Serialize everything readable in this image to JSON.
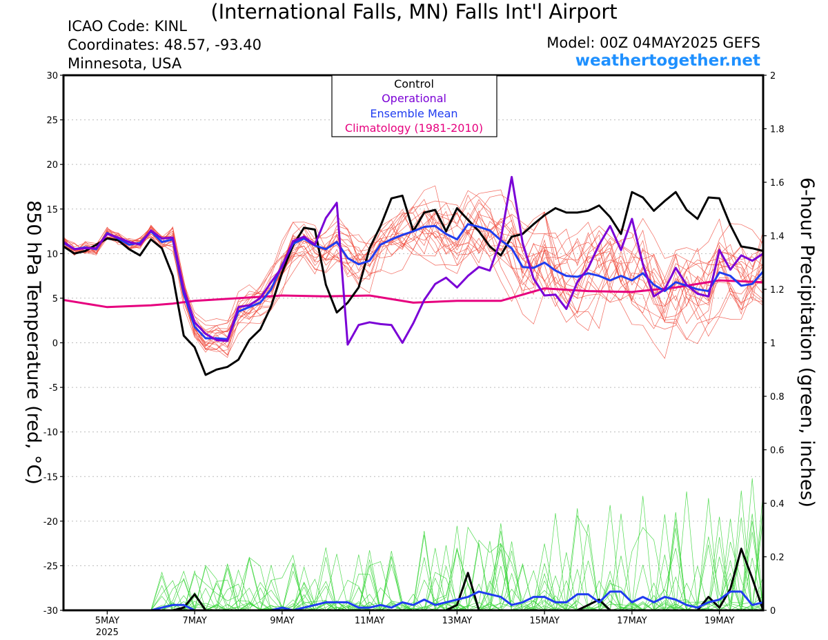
{
  "header": {
    "title": "(International Falls, MN) Falls Int'l Airport",
    "icao": "ICAO Code: KINL",
    "coordinates": "Coordinates: 48.57, -93.40",
    "location": "Minnesota, USA",
    "model": "Model: 00Z 04MAY2025 GEFS",
    "site": "weathertogether.net"
  },
  "colors": {
    "control": "#000000",
    "operational": "#7a00d6",
    "ensemble_mean": "#1f3cf0",
    "climatology": "#e6007e",
    "members_temp": "#f04a3c",
    "members_precip": "#3cd63c",
    "site": "#1e90ff"
  },
  "chart_data": {
    "type": "line",
    "x_axis": {
      "range": [
        "2025-05-04 00Z",
        "2025-05-20 00Z"
      ],
      "ticks": [
        {
          "label": "5MAY",
          "sublabel": "2025",
          "day": 1
        },
        {
          "label": "7MAY",
          "day": 3
        },
        {
          "label": "9MAY",
          "day": 5
        },
        {
          "label": "11MAY",
          "day": 7
        },
        {
          "label": "13MAY",
          "day": 9
        },
        {
          "label": "15MAY",
          "day": 11
        },
        {
          "label": "17MAY",
          "day": 13
        },
        {
          "label": "19MAY",
          "day": 15
        }
      ]
    },
    "y_left": {
      "label": "850 hPa Temperature (red, °C)",
      "range": [
        -30,
        30
      ],
      "ticks": [
        "30",
        "25",
        "20",
        "15",
        "10",
        "5",
        "0",
        "-5",
        "-10",
        "-15",
        "-20",
        "-25",
        "-30"
      ]
    },
    "y_right": {
      "label": "6-hour Precipitation (green, inches)",
      "range": [
        0,
        2
      ],
      "ticks": [
        "2",
        "1.8",
        "1.6",
        "1.4",
        "1.2",
        "1",
        "0.8",
        "0.6",
        "0.4",
        "0.2",
        "0"
      ]
    },
    "legend": {
      "placement": "top-center",
      "entries": [
        {
          "label": "Control",
          "color": "#000000"
        },
        {
          "label": "Operational",
          "color": "#7a00d6"
        },
        {
          "label": "Ensemble Mean",
          "color": "#1f3cf0"
        },
        {
          "label": "Climatology (1981-2010)",
          "color": "#e6007e"
        }
      ]
    },
    "grid": "horizontal dotted",
    "series": [
      {
        "name": "Control",
        "axis": "left",
        "x": [
          0,
          0.25,
          0.5,
          0.75,
          1,
          1.25,
          1.5,
          1.75,
          2,
          2.25,
          2.5,
          2.75,
          3,
          3.25,
          3.5,
          3.75,
          4,
          4.25,
          4.5,
          4.75,
          5,
          5.25,
          5.5,
          5.75,
          6,
          6.25,
          6.5,
          6.75,
          7,
          7.25,
          7.5,
          7.75,
          8,
          8.25,
          8.5,
          8.75,
          9,
          9.25,
          9.5,
          9.75,
          10,
          10.25,
          10.5,
          10.75,
          11,
          11.25,
          11.5,
          11.75,
          12,
          12.25,
          12.5,
          12.75,
          13,
          13.25,
          13.5,
          13.75,
          14,
          14.25,
          14.5,
          14.75,
          15,
          15.25,
          15.5,
          15.75,
          16
        ],
        "y": [
          10.8,
          10,
          10.3,
          11,
          11.7,
          11.5,
          10.5,
          9.8,
          11.6,
          10.6,
          7.5,
          0.8,
          -0.5,
          -3.6,
          -3,
          -2.7,
          -1.9,
          0.3,
          1.5,
          4.1,
          7.9,
          10.9,
          12.9,
          12.7,
          6.5,
          3.4,
          4.5,
          6.2,
          10.6,
          13.1,
          16.2,
          16.5,
          12.5,
          14.6,
          14.9,
          12.5,
          15.1,
          13.8,
          12.5,
          10.8,
          9.8,
          11.9,
          12.2,
          13.3,
          14.3,
          15.1,
          14.6,
          14.6,
          14.8,
          15.4,
          14.1,
          12.2,
          16.9,
          16.3,
          14.8,
          15.9,
          16.9,
          14.9,
          13.9,
          16.3,
          16.2,
          13.2,
          10.8,
          10.6,
          10.3
        ]
      },
      {
        "name": "Operational",
        "axis": "left",
        "x": [
          0,
          0.25,
          0.5,
          0.75,
          1,
          1.25,
          1.5,
          1.75,
          2,
          2.25,
          2.5,
          2.75,
          3,
          3.25,
          3.5,
          3.75,
          4,
          4.25,
          4.5,
          4.75,
          5,
          5.25,
          5.5,
          5.75,
          6,
          6.25,
          6.5,
          6.75,
          7,
          7.25,
          7.5,
          7.75,
          8,
          8.25,
          8.5,
          8.75,
          9,
          9.25,
          9.5,
          9.75,
          10,
          10.25,
          10.5,
          10.75,
          11,
          11.25,
          11.5,
          11.75,
          12,
          12.25,
          12.5,
          12.75,
          13,
          13.25,
          13.5,
          13.75,
          14,
          14.25,
          14.5,
          14.75,
          15,
          15.25,
          15.5,
          15.75,
          16
        ],
        "y": [
          11.3,
          10.5,
          10.6,
          10.6,
          12.2,
          11.8,
          11.3,
          11,
          12.6,
          11.7,
          11.8,
          6,
          2.3,
          1,
          0.3,
          0.2,
          4,
          4.2,
          5,
          6.8,
          8.5,
          11.4,
          11.9,
          11,
          14,
          15.7,
          -0.2,
          2,
          2.3,
          2.1,
          2,
          0,
          2.2,
          4.8,
          6.6,
          7.3,
          6.2,
          7.5,
          8.5,
          8.1,
          11.6,
          18.6,
          11.2,
          7.2,
          5.3,
          5.4,
          3.8,
          6.8,
          8.4,
          11,
          13.1,
          10.4,
          13.9,
          8.8,
          5.2,
          6,
          8.4,
          6.5,
          5.5,
          5.2,
          10.4,
          8.2,
          9.8,
          9.2,
          10
        ]
      },
      {
        "name": "Ensemble Mean",
        "axis": "left",
        "x": [
          0,
          0.25,
          0.5,
          0.75,
          1,
          1.25,
          1.5,
          1.75,
          2,
          2.25,
          2.5,
          2.75,
          3,
          3.25,
          3.5,
          3.75,
          4,
          4.25,
          4.5,
          4.75,
          5,
          5.25,
          5.5,
          5.75,
          6,
          6.25,
          6.5,
          6.75,
          7,
          7.25,
          7.5,
          7.75,
          8,
          8.25,
          8.5,
          8.75,
          9,
          9.25,
          9.5,
          9.75,
          10,
          10.25,
          10.5,
          10.75,
          11,
          11.25,
          11.5,
          11.75,
          12,
          12.25,
          12.5,
          12.75,
          13,
          13.25,
          13.5,
          13.75,
          14,
          14.25,
          14.5,
          14.75,
          15,
          15.25,
          15.5,
          15.75,
          16
        ],
        "y": [
          11.2,
          10.5,
          10.7,
          10.5,
          12.3,
          11.7,
          11,
          11.2,
          12.5,
          11.3,
          11.6,
          5.5,
          1.8,
          0.5,
          0.5,
          0.4,
          3.5,
          4,
          4.5,
          6,
          8.7,
          11.1,
          11.7,
          10.9,
          10.5,
          11.3,
          9.5,
          8.8,
          9.2,
          11,
          11.6,
          12.1,
          12.5,
          13,
          13.1,
          12.2,
          11.6,
          13.3,
          13,
          12.6,
          11.5,
          10.6,
          8.5,
          8.4,
          9,
          8.1,
          7.5,
          7.4,
          7.8,
          7.5,
          7,
          7.5,
          7,
          7.8,
          6.5,
          5.8,
          6.8,
          6.4,
          6,
          5.8,
          7.9,
          7.5,
          6.4,
          6.6,
          8
        ]
      },
      {
        "name": "Climatology (1981-2010)",
        "axis": "left",
        "x": [
          0,
          1,
          2,
          2.5,
          3,
          4,
          5,
          6,
          7,
          8,
          9,
          10,
          11,
          12,
          13,
          14,
          15,
          16
        ],
        "y": [
          4.8,
          4,
          4.2,
          4.4,
          4.7,
          5,
          5.3,
          5.2,
          5.3,
          4.5,
          4.7,
          4.7,
          6.1,
          5.8,
          5.7,
          6.2,
          7,
          6.8
        ]
      },
      {
        "name": "Control",
        "axis": "right",
        "x": [
          0,
          1,
          2,
          2.25,
          2.5,
          2.75,
          3,
          3.25,
          3.5,
          3.75,
          4,
          4.25,
          4.5,
          4.75,
          5,
          5.25,
          5.5,
          5.75,
          6,
          6.25,
          6.5,
          6.75,
          7,
          7.25,
          7.5,
          7.75,
          8,
          8.25,
          8.5,
          8.75,
          9,
          9.25,
          9.5,
          9.75,
          10,
          10.25,
          10.5,
          10.75,
          11,
          11.25,
          11.5,
          11.75,
          12,
          12.25,
          12.5,
          12.75,
          13,
          13.25,
          13.5,
          13.75,
          14,
          14.25,
          14.5,
          14.75,
          15,
          15.25,
          15.5,
          15.75,
          16
        ],
        "y": [
          0,
          0,
          0,
          0,
          0,
          0.01,
          0.06,
          0,
          0,
          0,
          0,
          0,
          0,
          0,
          0,
          0,
          0,
          0,
          0,
          0,
          0,
          0,
          0,
          0,
          0,
          0,
          0,
          0,
          0,
          0,
          0.02,
          0.14,
          0,
          0,
          0,
          0,
          0,
          0,
          0,
          0,
          0,
          0,
          0.02,
          0.04,
          0,
          0,
          0,
          0,
          0,
          0,
          0,
          0,
          0,
          0.05,
          0.01,
          0.08,
          0.23,
          0.12,
          0
        ]
      },
      {
        "name": "Ensemble Mean",
        "axis": "right",
        "x": [
          0,
          1,
          2,
          2.25,
          2.5,
          2.75,
          3,
          3.25,
          3.5,
          3.75,
          4,
          4.25,
          4.5,
          4.75,
          5,
          5.25,
          5.5,
          5.75,
          6,
          6.25,
          6.5,
          6.75,
          7,
          7.25,
          7.5,
          7.75,
          8,
          8.25,
          8.5,
          8.75,
          9,
          9.25,
          9.5,
          9.75,
          10,
          10.25,
          10.5,
          10.75,
          11,
          11.25,
          11.5,
          11.75,
          12,
          12.25,
          12.5,
          12.75,
          13,
          13.25,
          13.5,
          13.75,
          14,
          14.25,
          14.5,
          14.75,
          15,
          15.25,
          15.5,
          15.75,
          16
        ],
        "y": [
          0,
          0,
          0,
          0.01,
          0.02,
          0.02,
          0,
          0,
          0,
          0,
          0,
          0,
          0,
          0,
          0.01,
          0,
          0.01,
          0.02,
          0.03,
          0.03,
          0.03,
          0.01,
          0.01,
          0.02,
          0.01,
          0.03,
          0.02,
          0.04,
          0.02,
          0.03,
          0.04,
          0.05,
          0.07,
          0.06,
          0.05,
          0.02,
          0.03,
          0.05,
          0.05,
          0.03,
          0.03,
          0.06,
          0.06,
          0.03,
          0.07,
          0.07,
          0.03,
          0.05,
          0.03,
          0.05,
          0.04,
          0.02,
          0.01,
          0.03,
          0.04,
          0.07,
          0.07,
          0.02,
          0.03
        ]
      }
    ]
  }
}
